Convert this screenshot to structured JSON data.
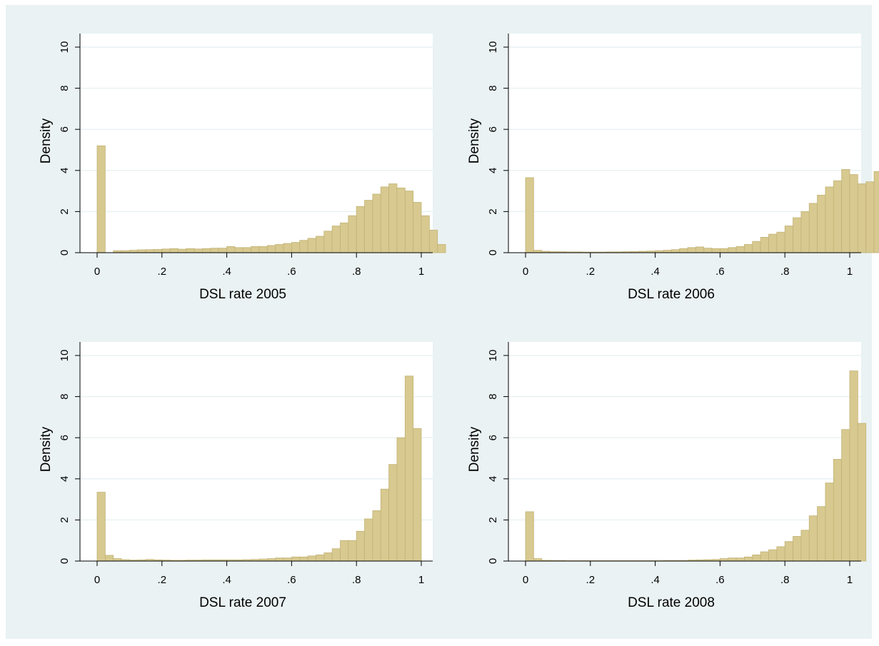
{
  "colors": {
    "background": "#ffffff",
    "graph_region": "#eaf2f3",
    "plot_region": "#ffffff",
    "gridline": "#eaf2f3",
    "bar_fill": "#d7c98f",
    "bar_edge": "#c2b377",
    "axis": "#000000"
  },
  "chart_data": [
    {
      "type": "bar",
      "subtype": "histogram",
      "xlabel": "DSL rate 2005",
      "ylabel": "Density",
      "xlim": [
        0,
        1
      ],
      "ylim": [
        0,
        10
      ],
      "xticks": [
        0,
        0.2,
        0.4,
        0.6,
        0.8,
        1
      ],
      "xtick_labels": [
        "0",
        ".2",
        ".4",
        ".6",
        ".8",
        "1"
      ],
      "yticks": [
        0,
        2,
        4,
        6,
        8,
        10
      ],
      "ytick_labels": [
        "0",
        "2",
        "4",
        "6",
        "8",
        "10"
      ],
      "grid": true,
      "bin_width": 0.025,
      "values": [
        5.2,
        0,
        0.1,
        0.1,
        0.12,
        0.14,
        0.15,
        0.16,
        0.18,
        0.2,
        0.17,
        0.2,
        0.18,
        0.2,
        0.22,
        0.22,
        0.3,
        0.25,
        0.25,
        0.3,
        0.3,
        0.35,
        0.4,
        0.45,
        0.5,
        0.6,
        0.7,
        0.8,
        1.05,
        1.3,
        1.45,
        1.8,
        2.25,
        2.55,
        2.85,
        3.2,
        3.35,
        3.15,
        3.0,
        2.45,
        1.8,
        1.1,
        0.4
      ]
    },
    {
      "type": "bar",
      "subtype": "histogram",
      "xlabel": "DSL rate 2006",
      "ylabel": "Density",
      "xlim": [
        0,
        1
      ],
      "ylim": [
        0,
        10
      ],
      "xticks": [
        0,
        0.2,
        0.4,
        0.6,
        0.8,
        1
      ],
      "xtick_labels": [
        "0",
        ".2",
        ".4",
        ".6",
        ".8",
        "1"
      ],
      "yticks": [
        0,
        2,
        4,
        6,
        8,
        10
      ],
      "ytick_labels": [
        "0",
        "2",
        "4",
        "6",
        "8",
        "10"
      ],
      "grid": true,
      "bin_width": 0.025,
      "values": [
        3.65,
        0.12,
        0.07,
        0.05,
        0.05,
        0.04,
        0.04,
        0.03,
        0.03,
        0.03,
        0.04,
        0.04,
        0.05,
        0.06,
        0.07,
        0.08,
        0.1,
        0.12,
        0.15,
        0.2,
        0.25,
        0.28,
        0.22,
        0.2,
        0.2,
        0.25,
        0.3,
        0.4,
        0.55,
        0.75,
        0.9,
        1.0,
        1.3,
        1.7,
        2.0,
        2.4,
        2.8,
        3.2,
        3.5,
        4.05,
        3.8,
        3.35,
        3.45,
        3.95
      ]
    },
    {
      "type": "bar",
      "subtype": "histogram",
      "xlabel": "DSL rate 2007",
      "ylabel": "Density",
      "xlim": [
        0,
        1
      ],
      "ylim": [
        0,
        10
      ],
      "xticks": [
        0,
        0.2,
        0.4,
        0.6,
        0.8,
        1
      ],
      "xtick_labels": [
        "0",
        ".2",
        ".4",
        ".6",
        ".8",
        "1"
      ],
      "yticks": [
        0,
        2,
        4,
        6,
        8,
        10
      ],
      "ytick_labels": [
        "0",
        "2",
        "4",
        "6",
        "8",
        "10"
      ],
      "grid": true,
      "bin_width": 0.025,
      "values": [
        3.35,
        0.28,
        0.12,
        0.07,
        0.05,
        0.06,
        0.08,
        0.06,
        0.05,
        0.04,
        0.04,
        0.05,
        0.05,
        0.06,
        0.06,
        0.06,
        0.06,
        0.06,
        0.07,
        0.08,
        0.1,
        0.12,
        0.15,
        0.15,
        0.2,
        0.2,
        0.25,
        0.3,
        0.4,
        0.6,
        1.0,
        1.0,
        1.45,
        2.05,
        2.45,
        3.5,
        4.7,
        6.0,
        9.0,
        6.45
      ]
    },
    {
      "type": "bar",
      "subtype": "histogram",
      "xlabel": "DSL rate 2008",
      "ylabel": "Density",
      "xlim": [
        0,
        1
      ],
      "ylim": [
        0,
        10
      ],
      "xticks": [
        0,
        0.2,
        0.4,
        0.6,
        0.8,
        1
      ],
      "xtick_labels": [
        "0",
        ".2",
        ".4",
        ".6",
        ".8",
        "1"
      ],
      "yticks": [
        0,
        2,
        4,
        6,
        8,
        10
      ],
      "ytick_labels": [
        "0",
        "2",
        "4",
        "6",
        "8",
        "10"
      ],
      "grid": true,
      "bin_width": 0.025,
      "values": [
        2.4,
        0.12,
        0.04,
        0.03,
        0.03,
        0.02,
        0.02,
        0.02,
        0.02,
        0.02,
        0.02,
        0.02,
        0.02,
        0.02,
        0.02,
        0.02,
        0.02,
        0.03,
        0.03,
        0.03,
        0.05,
        0.06,
        0.07,
        0.08,
        0.12,
        0.15,
        0.15,
        0.2,
        0.3,
        0.45,
        0.55,
        0.7,
        0.95,
        1.2,
        1.5,
        2.2,
        2.65,
        3.8,
        4.95,
        6.4,
        9.25,
        6.7
      ]
    }
  ]
}
